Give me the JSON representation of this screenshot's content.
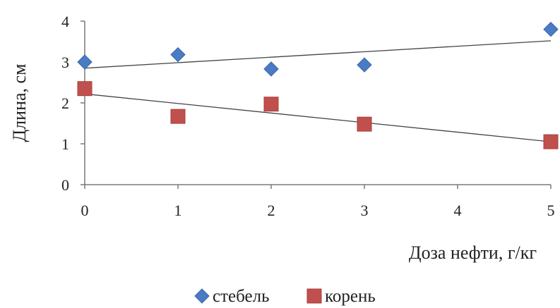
{
  "chart_data": {
    "type": "scatter",
    "title": "",
    "xlabel": "Доза нефти, г/кг",
    "ylabel": "Длина, см",
    "xlim": [
      0,
      5
    ],
    "ylim": [
      0,
      4
    ],
    "x_ticks": [
      "0",
      "1",
      "2",
      "3",
      "4",
      "5"
    ],
    "y_ticks": [
      "0",
      "1",
      "2",
      "3",
      "4"
    ],
    "grid": false,
    "legend_position": "bottom",
    "series": [
      {
        "name": "стебель",
        "marker": "diamond",
        "color": "#4a7bc4",
        "points": [
          [
            0,
            3.0
          ],
          [
            1,
            3.18
          ],
          [
            2,
            2.83
          ],
          [
            3,
            2.93
          ],
          [
            5,
            3.8
          ]
        ],
        "trendline": [
          [
            0,
            2.85
          ],
          [
            5,
            3.52
          ]
        ]
      },
      {
        "name": "корень",
        "marker": "square",
        "color": "#c0504d",
        "points": [
          [
            0,
            2.35
          ],
          [
            1,
            1.67
          ],
          [
            2,
            1.97
          ],
          [
            3,
            1.48
          ],
          [
            5,
            1.05
          ]
        ],
        "trendline": [
          [
            0,
            2.22
          ],
          [
            5,
            1.05
          ]
        ]
      }
    ]
  }
}
